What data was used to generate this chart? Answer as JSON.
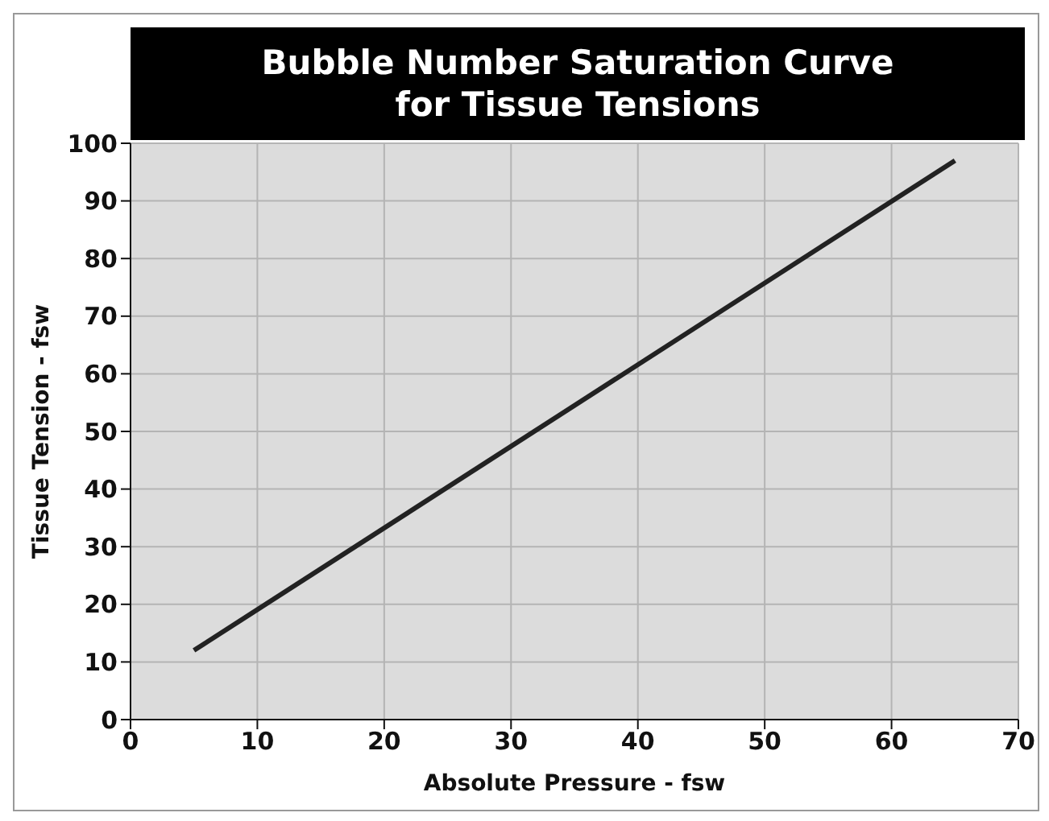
{
  "chart_data": {
    "type": "line",
    "title": "Bubble Number Saturation Curve\nfor Tissue Tensions",
    "xlabel": "Absolute Pressure - fsw",
    "ylabel": "Tissue Tension - fsw",
    "series": [
      {
        "color": "#222222",
        "x": [
          5,
          65
        ],
        "values": [
          12,
          97
        ]
      }
    ],
    "xlim": [
      0,
      70
    ],
    "xticks": [
      0,
      10,
      20,
      30,
      40,
      50,
      60,
      70
    ],
    "ylim": [
      0,
      100
    ],
    "yticks": [
      0,
      10,
      20,
      30,
      40,
      50,
      60,
      70,
      80,
      90,
      100
    ],
    "grid": true,
    "marker": "none",
    "line_style": "solid"
  }
}
